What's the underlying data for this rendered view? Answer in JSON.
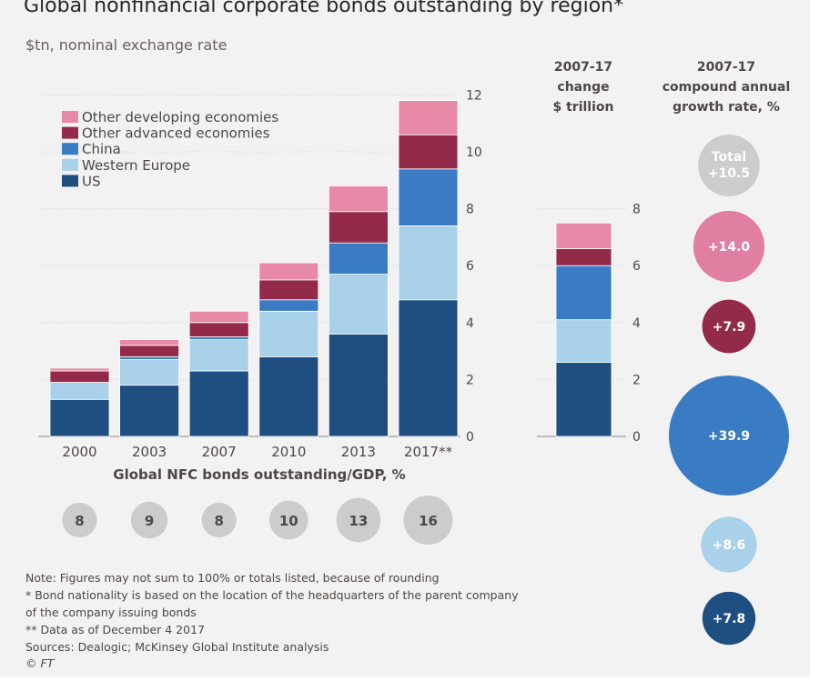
{
  "title": "Global nonfinancial corporate bonds outstanding by region*",
  "subtitle": "$tn, nominal exchange rate",
  "chart_data": [
    {
      "type": "bar",
      "stacked": true,
      "categories": [
        "2000",
        "2003",
        "2007",
        "2010",
        "2013",
        "2017**"
      ],
      "series": [
        {
          "name": "US",
          "color": "#1f4f80",
          "values": [
            1.3,
            1.8,
            2.3,
            2.8,
            3.6,
            4.8
          ]
        },
        {
          "name": "Western Europe",
          "color": "#a9d1ea",
          "values": [
            0.6,
            0.9,
            1.1,
            1.6,
            2.1,
            2.6
          ]
        },
        {
          "name": "China",
          "color": "#3a7cc4",
          "values": [
            0.0,
            0.1,
            0.1,
            0.4,
            1.1,
            2.0
          ]
        },
        {
          "name": "Other advanced economies",
          "color": "#932a4a",
          "values": [
            0.4,
            0.4,
            0.5,
            0.7,
            1.1,
            1.2
          ]
        },
        {
          "name": "Other developing economies",
          "color": "#e889a8",
          "values": [
            0.1,
            0.2,
            0.4,
            0.6,
            0.9,
            1.2
          ]
        }
      ],
      "ylim": [
        0,
        12
      ],
      "yticks": [
        0,
        2,
        4,
        6,
        8,
        10,
        12
      ],
      "grid": true,
      "legend_position": "top-left"
    },
    {
      "type": "bar",
      "stacked": true,
      "title": "2007-17 change $ trillion",
      "title_lines": [
        "2007-17",
        "change",
        "$ trillion"
      ],
      "categories": [
        "2007-17"
      ],
      "series": [
        {
          "name": "US",
          "values": [
            2.6
          ]
        },
        {
          "name": "Western Europe",
          "values": [
            1.5
          ]
        },
        {
          "name": "China",
          "values": [
            1.9
          ]
        },
        {
          "name": "Other advanced economies",
          "values": [
            0.6
          ]
        },
        {
          "name": "Other developing economies",
          "values": [
            0.9
          ]
        }
      ],
      "ylim": [
        0,
        8
      ],
      "yticks": [
        0,
        2,
        4,
        6,
        8
      ]
    },
    {
      "type": "scatter",
      "title": "2007-17 compound annual growth rate, %",
      "title_lines": [
        "2007-17",
        "compound annual",
        "growth rate, %"
      ],
      "points": [
        {
          "name": "Total",
          "label": "Total",
          "value_label": "+10.5",
          "value": 10.5,
          "color": "#cccccc"
        },
        {
          "name": "Other developing economies",
          "value_label": "+14.0",
          "value": 14.0,
          "color": "#e07fa2"
        },
        {
          "name": "Other advanced economies",
          "value_label": "+7.9",
          "value": 7.9,
          "color": "#932a4a"
        },
        {
          "name": "China",
          "value_label": "+39.9",
          "value": 39.9,
          "color": "#3a7cc4"
        },
        {
          "name": "Western Europe",
          "value_label": "+8.6",
          "value": 8.6,
          "color": "#a9d1ea"
        },
        {
          "name": "US",
          "value_label": "+7.8",
          "value": 7.8,
          "color": "#1f4f80"
        }
      ]
    },
    {
      "type": "table",
      "title": "Global NFC bonds outstanding/GDP, %",
      "categories": [
        "2000",
        "2003",
        "2007",
        "2010",
        "2013",
        "2017**"
      ],
      "values": [
        8,
        9,
        8,
        10,
        13,
        16
      ],
      "labels": [
        "8",
        "9",
        "8",
        "10",
        "13",
        "16"
      ]
    }
  ],
  "notes": [
    "Note: Figures may not sum to 100% or totals listed, because of rounding",
    "* Bond nationality is based on the location of the headquarters of the parent company",
    "of the company issuing bonds",
    "** Data as of December 4 2017",
    "Sources: Dealogic; McKinsey Global Institute analysis",
    "© FT"
  ]
}
